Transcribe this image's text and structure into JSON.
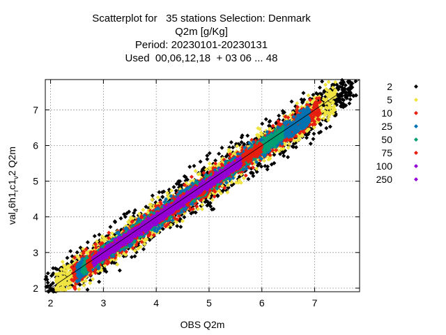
{
  "chart_data": {
    "type": "scatter",
    "title": [
      "Scatterplot for   35 stations Selection: Denmark",
      "Q2m [g/Kg]",
      "Period: 20230101-20230131",
      "Used  00,06,12,18  + 03 06 ... 48"
    ],
    "xlabel": "OBS Q2m",
    "ylabel": {
      "main": "val",
      "sub1": "4",
      "mid": "6h1",
      "sub2": "r",
      "mid2": "c1",
      "sub3": "v",
      "tail": "2 Q2m"
    },
    "xlim": [
      1.9,
      7.85
    ],
    "ylim": [
      1.9,
      7.85
    ],
    "xticks": [
      "2",
      "3",
      "4",
      "5",
      "6",
      "7"
    ],
    "yticks": [
      "2",
      "3",
      "4",
      "5",
      "6",
      "7"
    ],
    "grid": true,
    "legend_position": "right",
    "diagonal": [
      [
        1.9,
        1.9
      ],
      [
        7.85,
        7.85
      ]
    ],
    "series": [
      {
        "name": "2",
        "color": "#000000",
        "halfwidth": 0.95,
        "xrange": [
          1.9,
          7.8
        ]
      },
      {
        "name": "5",
        "color": "#f0e442",
        "halfwidth": 0.7,
        "xrange": [
          2.1,
          7.4
        ]
      },
      {
        "name": "10",
        "color": "#e51e10",
        "halfwidth": 0.52,
        "xrange": [
          2.4,
          7.1
        ]
      },
      {
        "name": "25",
        "color": "#0072b2",
        "halfwidth": 0.4,
        "xrange": [
          2.5,
          6.9
        ]
      },
      {
        "name": "50",
        "color": "#009e73",
        "halfwidth": 0.3,
        "xrange": [
          2.6,
          6.4
        ]
      },
      {
        "name": "75",
        "color": "#e51e10",
        "halfwidth": 0.24,
        "xrange": [
          2.7,
          6.0
        ]
      },
      {
        "name": "100",
        "color": "#9400d3",
        "halfwidth": 0.2,
        "xrange": [
          2.8,
          5.6
        ]
      },
      {
        "name": "250",
        "color": "#9400d3",
        "halfwidth": 0.1,
        "xrange": [
          3.3,
          4.8
        ]
      }
    ]
  }
}
